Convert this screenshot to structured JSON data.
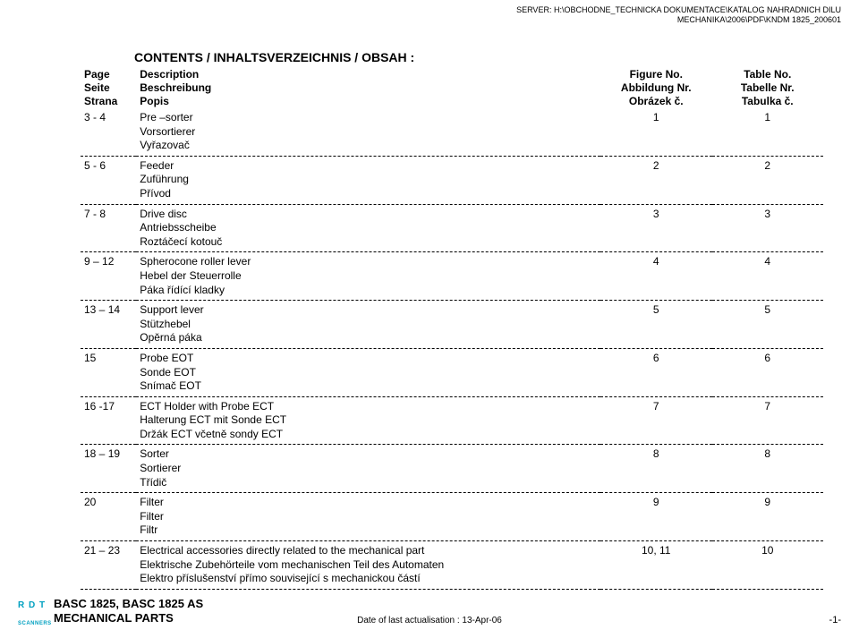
{
  "server_path": {
    "line1": "SERVER: H:\\OBCHODNE_TECHNICKA DOKUMENTACE\\KATALOG NAHRADNICH DILU",
    "line2": "MECHANIKA\\2006\\PDF\\KNDM 1825_200601"
  },
  "heading": "CONTENTS / INHALTSVERZEICHNIS / OBSAH :",
  "header": {
    "page": {
      "en": "Page",
      "de": "Seite",
      "cz": "Strana"
    },
    "desc": {
      "en": "Description",
      "de": "Beschreibung",
      "cz": "Popis"
    },
    "fig": {
      "en": "Figure No.",
      "de": "Abbildung Nr.",
      "cz": "Obrázek č."
    },
    "tab": {
      "en": "Table No.",
      "de": "Tabelle Nr.",
      "cz": "Tabulka č."
    }
  },
  "rows": [
    {
      "page": "3 - 4",
      "desc": [
        "Pre –sorter",
        "Vorsortierer",
        "Vyřazovač"
      ],
      "fig": "1",
      "tab": "1"
    },
    {
      "page": "5 - 6",
      "desc": [
        "Feeder",
        "Zuführung",
        "Přívod"
      ],
      "fig": "2",
      "tab": "2"
    },
    {
      "page": "7 - 8",
      "desc": [
        "Drive disc",
        "Antriebsscheibe",
        "Roztáčecí kotouč"
      ],
      "fig": "3",
      "tab": "3"
    },
    {
      "page": "9 – 12",
      "desc": [
        "Spherocone roller lever",
        "Hebel der Steuerrolle",
        "Páka řídící kladky"
      ],
      "fig": "4",
      "tab": "4"
    },
    {
      "page": "13 – 14",
      "desc": [
        "Support lever",
        "Stützhebel",
        "Opěrná páka"
      ],
      "fig": "5",
      "tab": "5"
    },
    {
      "page": "15",
      "desc": [
        "Probe EOT",
        "Sonde EOT",
        "Snímač EOT"
      ],
      "fig": "6",
      "tab": "6"
    },
    {
      "page": "16 -17",
      "desc": [
        "ECT Holder with Probe ECT",
        "Halterung ECT mit Sonde ECT",
        "Držák ECT včetně sondy ECT"
      ],
      "fig": "7",
      "tab": "7"
    },
    {
      "page": "18 – 19",
      "desc": [
        "Sorter",
        "Sortierer",
        "Třídič"
      ],
      "fig": "8",
      "tab": "8"
    },
    {
      "page": "20",
      "desc": [
        "Filter",
        "Filter",
        "Filtr"
      ],
      "fig": "9",
      "tab": "9"
    },
    {
      "page": "21 – 23",
      "desc": [
        "Electrical accessories directly related to the mechanical part",
        "Elektrische Zubehörteile vom mechanischen Teil des Automaten",
        "Elektro příslušenství přímo související s mechanickou částí"
      ],
      "fig": "10, 11",
      "tab": "10"
    }
  ],
  "footer": {
    "cyan_top": "R D T",
    "cyan_bot": "SCANNERS",
    "title_line1": "BASC 1825, BASC 1825 AS",
    "title_line2": "MECHANICAL PARTS",
    "mid": "Date of last actualisation :  13-Apr-06",
    "right": "-1-"
  }
}
